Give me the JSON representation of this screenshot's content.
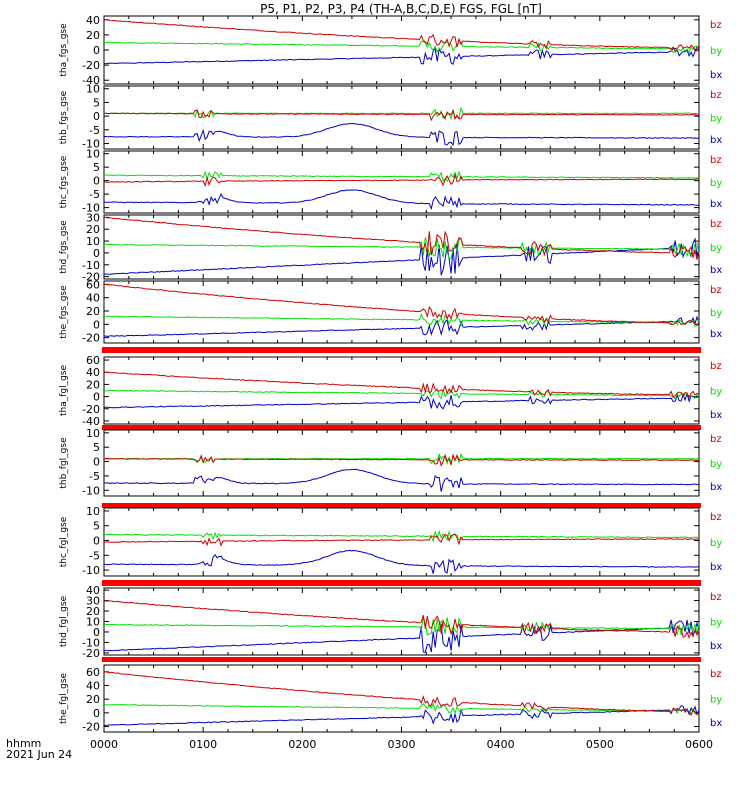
{
  "title": "P5, P1, P2, P3, P4 (TH-A,B,C,D,E) FGS, FGL [nT]",
  "footer": {
    "line1": "hhmm",
    "line2": "2021 Jun 24"
  },
  "colors": {
    "bx": "#0000c8",
    "by": "#00e000",
    "bz": "#d00000",
    "bar": "#ff0000",
    "axis": "#000000"
  },
  "chart_data": {
    "type": "line",
    "x_ticks": [
      "0000",
      "0100",
      "0200",
      "0300",
      "0400",
      "0500",
      "0600"
    ],
    "x_range": [
      0,
      6
    ],
    "legend": [
      "bz",
      "by",
      "bx"
    ],
    "panels": [
      {
        "ylabel": "tha_fgs_gse",
        "ylim": [
          -45,
          45
        ],
        "yticks": [
          40,
          20,
          0,
          -20,
          -40
        ],
        "start": {
          "bx": -18,
          "by": 10,
          "bz": 40
        },
        "end": {
          "bx": -2,
          "by": 1,
          "bz": 3
        },
        "bursts": [
          [
            3.2,
            3.6,
            8
          ],
          [
            4.3,
            4.5,
            5
          ],
          [
            5.7,
            6.0,
            5
          ]
        ]
      },
      {
        "ylabel": "thb_fgs_gse",
        "ylim": [
          -12,
          11
        ],
        "yticks": [
          10,
          5,
          0,
          -5,
          -10
        ],
        "start": {
          "bx": -7.5,
          "by": 1,
          "bz": 1
        },
        "end": {
          "bx": -8,
          "by": 1,
          "bz": 0.5
        },
        "bursts": [
          [
            0.9,
            1.1,
            1.5
          ],
          [
            3.3,
            3.6,
            2
          ]
        ]
      },
      {
        "ylabel": "thc_fgs_gse",
        "ylim": [
          -12,
          11
        ],
        "yticks": [
          10,
          5,
          0,
          -5,
          -10
        ],
        "start": {
          "bx": -8,
          "by": 2,
          "bz": -0.5
        },
        "end": {
          "bx": -9,
          "by": 1,
          "bz": 0.5
        },
        "bursts": [
          [
            1.0,
            1.2,
            1.5
          ],
          [
            3.3,
            3.6,
            2
          ]
        ]
      },
      {
        "ylabel": "thd_fgs_gse",
        "ylim": [
          -22,
          32
        ],
        "yticks": [
          30,
          20,
          10,
          0,
          -10,
          -20
        ],
        "start": {
          "bx": -18,
          "by": 7,
          "bz": 30
        },
        "end": {
          "bx": 5,
          "by": 3,
          "bz": 0
        },
        "bursts": [
          [
            3.2,
            3.6,
            10
          ],
          [
            4.2,
            4.5,
            6
          ],
          [
            5.7,
            6.0,
            6
          ]
        ]
      },
      {
        "ylabel": "the_fgs_gse",
        "ylim": [
          -28,
          65
        ],
        "yticks": [
          60,
          40,
          20,
          0,
          -20
        ],
        "start": {
          "bx": -18,
          "by": 12,
          "bz": 60
        },
        "end": {
          "bx": 5,
          "by": 2,
          "bz": 2
        },
        "bursts": [
          [
            3.2,
            3.6,
            8
          ],
          [
            4.2,
            4.5,
            5
          ],
          [
            5.7,
            6.0,
            5
          ]
        ]
      },
      {
        "ylabel": "tha_fgl_gse",
        "ylim": [
          -45,
          65
        ],
        "yticks": [
          60,
          40,
          20,
          0,
          -20,
          -40
        ],
        "start": {
          "bx": -18,
          "by": 10,
          "bz": 40
        },
        "end": {
          "bx": -2,
          "by": 1,
          "bz": 3
        },
        "bursts": [
          [
            3.2,
            3.6,
            8
          ],
          [
            4.3,
            4.5,
            5
          ],
          [
            5.7,
            6.0,
            5
          ]
        ]
      },
      {
        "ylabel": "thb_fgl_gse",
        "ylim": [
          -12,
          11
        ],
        "yticks": [
          10,
          5,
          0,
          -5,
          -10
        ],
        "start": {
          "bx": -7.5,
          "by": 1,
          "bz": 1
        },
        "end": {
          "bx": -8,
          "by": 1,
          "bz": 0.5
        },
        "bursts": [
          [
            0.9,
            1.1,
            1.5
          ],
          [
            3.3,
            3.6,
            2
          ]
        ]
      },
      {
        "ylabel": "thc_fgl_gse",
        "ylim": [
          -12,
          11
        ],
        "yticks": [
          10,
          5,
          0,
          -5,
          -10
        ],
        "start": {
          "bx": -8,
          "by": 2,
          "bz": -0.5
        },
        "end": {
          "bx": -9,
          "by": 1,
          "bz": 0.5
        },
        "bursts": [
          [
            1.0,
            1.2,
            1.5
          ],
          [
            3.3,
            3.6,
            2
          ]
        ]
      },
      {
        "ylabel": "thd_fgl_gse",
        "ylim": [
          -22,
          42
        ],
        "yticks": [
          40,
          30,
          20,
          10,
          0,
          -10,
          -20
        ],
        "start": {
          "bx": -18,
          "by": 7,
          "bz": 30
        },
        "end": {
          "bx": 5,
          "by": 3,
          "bz": 0
        },
        "bursts": [
          [
            3.2,
            3.6,
            10
          ],
          [
            4.2,
            4.5,
            6
          ],
          [
            5.7,
            6.0,
            6
          ]
        ]
      },
      {
        "ylabel": "the_fgl_gse",
        "ylim": [
          -28,
          70
        ],
        "yticks": [
          60,
          40,
          20,
          0,
          -20
        ],
        "start": {
          "bx": -18,
          "by": 12,
          "bz": 60
        },
        "end": {
          "bx": 5,
          "by": 2,
          "bz": 2
        },
        "bursts": [
          [
            3.2,
            3.6,
            8
          ],
          [
            4.2,
            4.5,
            5
          ],
          [
            5.7,
            6.0,
            5
          ]
        ]
      }
    ]
  }
}
